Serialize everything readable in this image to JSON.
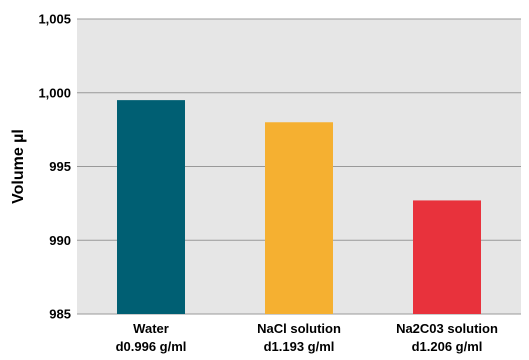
{
  "chart_data": {
    "type": "bar",
    "title": "",
    "xlabel": "",
    "ylabel": "Volume µl",
    "ylim": [
      985,
      1005
    ],
    "yticks": [
      985,
      990,
      995,
      1000,
      1005
    ],
    "ytick_labels": [
      "985",
      "990",
      "995",
      "1,000",
      "1,005"
    ],
    "grid": true,
    "plot_background": "#e6e6e6",
    "gridline_color": "#999999",
    "categories": [
      {
        "line1": "Water",
        "line2": "d0.996 g/ml"
      },
      {
        "line1": "NaCl solution",
        "line2": "d1.193 g/ml"
      },
      {
        "line1": "Na2C03 solution",
        "line2": "d1.206 g/ml"
      }
    ],
    "values": [
      999.5,
      998.0,
      992.7
    ],
    "colors": [
      "#005f73",
      "#f5b031",
      "#e8323c"
    ]
  }
}
